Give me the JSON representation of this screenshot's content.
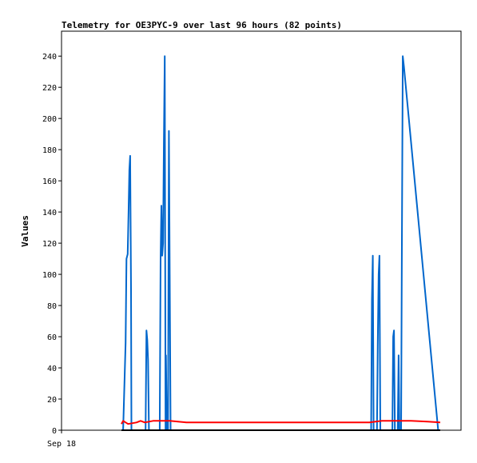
{
  "chart_data": {
    "type": "line",
    "title": "Telemetry for OE3PYC-9 over last 96 hours (82 points)",
    "xlabel": "",
    "ylabel": "Values",
    "x_tick_labels": [
      "Sep 18"
    ],
    "ylim": [
      0,
      256
    ],
    "y_ticks": [
      0,
      20,
      40,
      60,
      80,
      100,
      120,
      140,
      160,
      180,
      200,
      220,
      240
    ],
    "grid": false,
    "legend": "none",
    "x_range_hours": [
      0,
      96
    ],
    "series": [
      {
        "color": "#0066cc",
        "points": [
          [
            14.8,
            0
          ],
          [
            15.4,
            56
          ],
          [
            15.6,
            110
          ],
          [
            15.9,
            113
          ],
          [
            16.1,
            140
          ],
          [
            16.3,
            167
          ],
          [
            16.5,
            176
          ],
          [
            16.7,
            90
          ],
          [
            16.8,
            0
          ],
          [
            20.2,
            0
          ],
          [
            20.4,
            64
          ],
          [
            20.6,
            58
          ],
          [
            20.8,
            45
          ],
          [
            21.0,
            0
          ],
          [
            23.6,
            0
          ],
          [
            23.8,
            110
          ],
          [
            24.0,
            144
          ],
          [
            24.2,
            112
          ],
          [
            24.4,
            120
          ],
          [
            24.6,
            184
          ],
          [
            24.8,
            240
          ],
          [
            25.0,
            0
          ],
          [
            25.1,
            48
          ],
          [
            25.3,
            0
          ],
          [
            25.6,
            0
          ],
          [
            25.8,
            192
          ],
          [
            26.0,
            100
          ],
          [
            26.2,
            0
          ],
          [
            74.4,
            0
          ],
          [
            74.6,
            84
          ],
          [
            74.8,
            112
          ],
          [
            75.0,
            0
          ],
          [
            75.8,
            0
          ],
          [
            76.0,
            55
          ],
          [
            76.2,
            100
          ],
          [
            76.4,
            112
          ],
          [
            76.6,
            0
          ],
          [
            79.5,
            0
          ],
          [
            79.7,
            60
          ],
          [
            79.9,
            64
          ],
          [
            80.1,
            0
          ],
          [
            80.8,
            0
          ],
          [
            81.0,
            48
          ],
          [
            81.2,
            0
          ],
          [
            81.6,
            0
          ],
          [
            81.8,
            120
          ],
          [
            82.0,
            240
          ],
          [
            82.3,
            233
          ],
          [
            90.5,
            0
          ]
        ]
      },
      {
        "color": "#ff0000",
        "points": [
          [
            14.4,
            4
          ],
          [
            14.8,
            6
          ],
          [
            16.0,
            4
          ],
          [
            18.0,
            5
          ],
          [
            19.0,
            6
          ],
          [
            20.0,
            5
          ],
          [
            22.0,
            6
          ],
          [
            24.0,
            6
          ],
          [
            26.0,
            6
          ],
          [
            30.0,
            5
          ],
          [
            60.0,
            5
          ],
          [
            74.0,
            5
          ],
          [
            77.0,
            6
          ],
          [
            80.0,
            6
          ],
          [
            84.0,
            6
          ],
          [
            88.0,
            5.5
          ],
          [
            91.0,
            5
          ]
        ]
      },
      {
        "color": "#000000",
        "points": [
          [
            14.4,
            0
          ],
          [
            91.0,
            0
          ]
        ]
      }
    ]
  }
}
